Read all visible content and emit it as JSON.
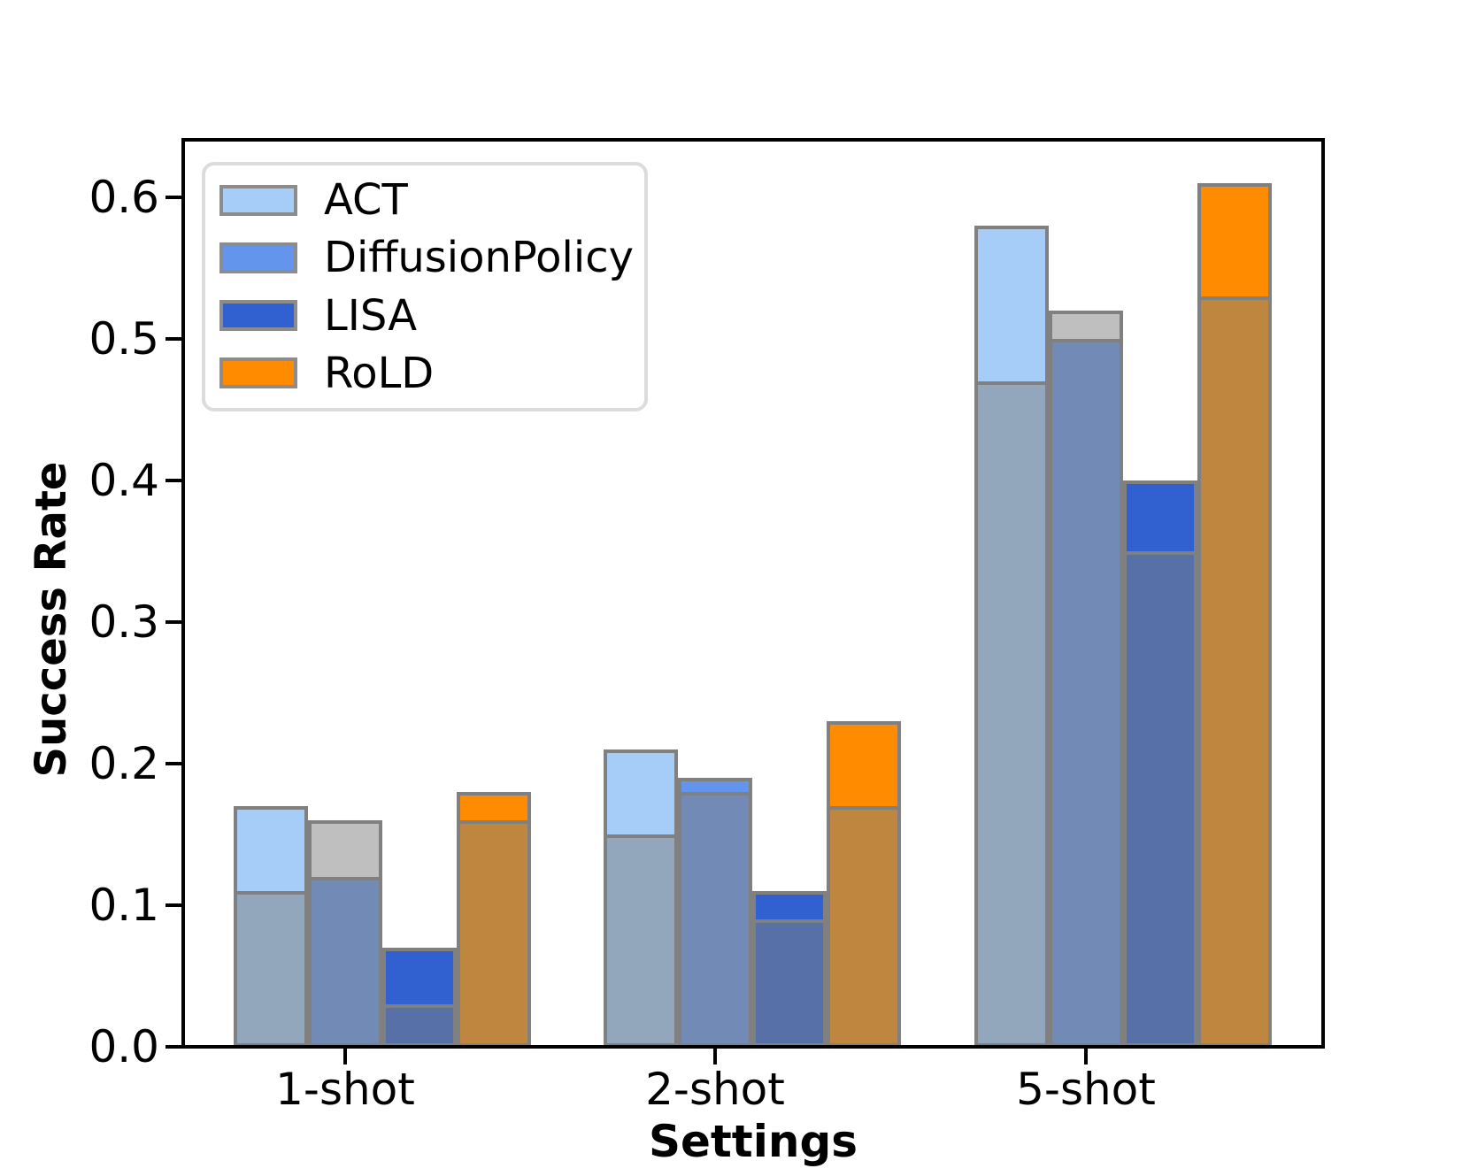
{
  "figure": {
    "xlabel": "Settings",
    "ylabel": "Success Rate"
  },
  "axes": {
    "ytick_labels": [
      "0.0",
      "0.1",
      "0.2",
      "0.3",
      "0.4",
      "0.5",
      "0.6"
    ],
    "xtick_labels": [
      "1-shot",
      "2-shot",
      "5-shot"
    ]
  },
  "legend": {
    "items": [
      {
        "label": "ACT",
        "color": "#A5CDF8"
      },
      {
        "label": "DiffusionPolicy",
        "color": "#6495ED"
      },
      {
        "label": "LISA",
        "color": "#3161D1"
      },
      {
        "label": "RoLD",
        "color": "#FF8C00"
      }
    ]
  },
  "chart_data": {
    "type": "bar",
    "title": "",
    "xlabel": "Settings",
    "ylabel": "Success Rate",
    "categories": [
      "1-shot",
      "2-shot",
      "5-shot"
    ],
    "series": [
      {
        "name": "ACT",
        "color": "#A5CDF8",
        "values": [
          0.17,
          0.21,
          0.58
        ],
        "overlay_values": [
          0.11,
          0.15,
          0.47
        ]
      },
      {
        "name": "DiffusionPolicy",
        "color": "#6495ED",
        "values": [
          0.12,
          0.19,
          0.5
        ],
        "overlay_values": [
          0.16,
          0.18,
          0.52
        ]
      },
      {
        "name": "LISA",
        "color": "#3161D1",
        "values": [
          0.07,
          0.11,
          0.4
        ],
        "overlay_values": [
          0.03,
          0.09,
          0.35
        ]
      },
      {
        "name": "RoLD",
        "color": "#FF8C00",
        "values": [
          0.18,
          0.23,
          0.61
        ],
        "overlay_values": [
          0.16,
          0.17,
          0.53
        ]
      }
    ],
    "overlay_color": "rgba(128,128,128,0.5)",
    "bar_edge_color": "#808080",
    "ylim": [
      0.0,
      0.64
    ],
    "yticks": [
      0.0,
      0.1,
      0.2,
      0.3,
      0.4,
      0.5,
      0.6
    ],
    "grid": false,
    "legend_position": "upper-left"
  }
}
